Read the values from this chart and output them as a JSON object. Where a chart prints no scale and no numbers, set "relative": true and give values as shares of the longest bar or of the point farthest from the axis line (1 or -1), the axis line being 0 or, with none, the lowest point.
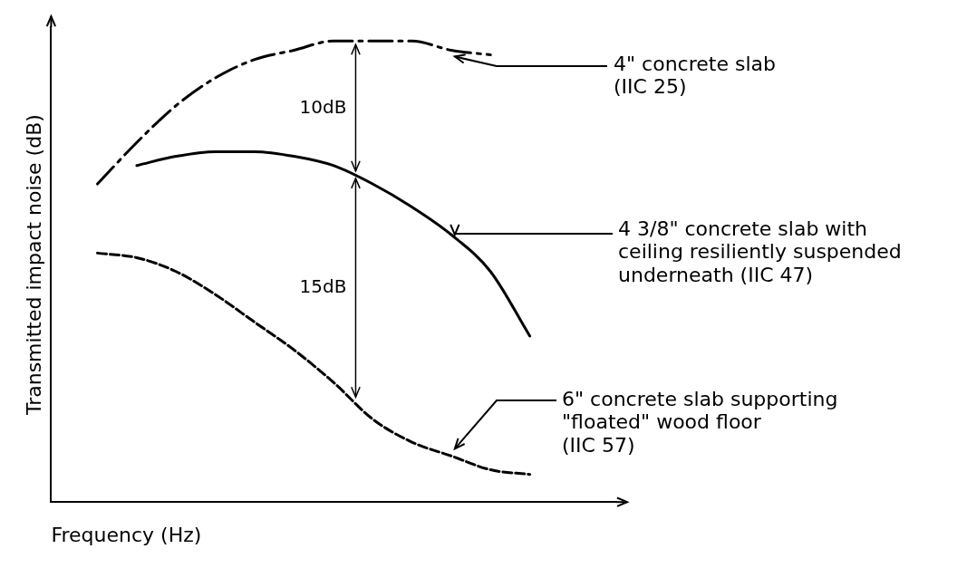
{
  "chart_data": {
    "type": "line",
    "relative": true,
    "xlabel": "Frequency (Hz)",
    "ylabel": "Transmitted impact noise (dB)",
    "categories": [
      null,
      null,
      null,
      null,
      null,
      null,
      null,
      null,
      null,
      null,
      null,
      null
    ],
    "series": [
      {
        "name": "4\" concrete slab\n(IIC 25)",
        "color": "#000000",
        "line_style": "dashdot",
        "values": [
          0.69,
          0.78,
          0.86,
          0.92,
          0.96,
          0.98,
          1.0,
          1.0,
          1.0,
          0.98,
          0.97,
          null
        ]
      },
      {
        "name": "4 3/8\" concrete slab with\nceiling resiliently suspended\nunderneath (IIC 47)",
        "color": "#000000",
        "line_style": "solid",
        "values": [
          null,
          0.73,
          0.75,
          0.76,
          0.76,
          0.75,
          0.73,
          0.69,
          0.64,
          0.58,
          0.5,
          0.36
        ]
      },
      {
        "name": "6\" concrete slab supporting\n\"floated\" wood floor\n(IIC 57)",
        "color": "#000000",
        "line_style": "dashed",
        "values": [
          0.54,
          0.53,
          0.5,
          0.45,
          0.39,
          0.33,
          0.26,
          0.18,
          0.13,
          0.1,
          0.07,
          0.06
        ]
      }
    ],
    "annotations": [
      "10dB",
      "15dB"
    ],
    "grid": false,
    "legend": false,
    "marker": "none"
  }
}
